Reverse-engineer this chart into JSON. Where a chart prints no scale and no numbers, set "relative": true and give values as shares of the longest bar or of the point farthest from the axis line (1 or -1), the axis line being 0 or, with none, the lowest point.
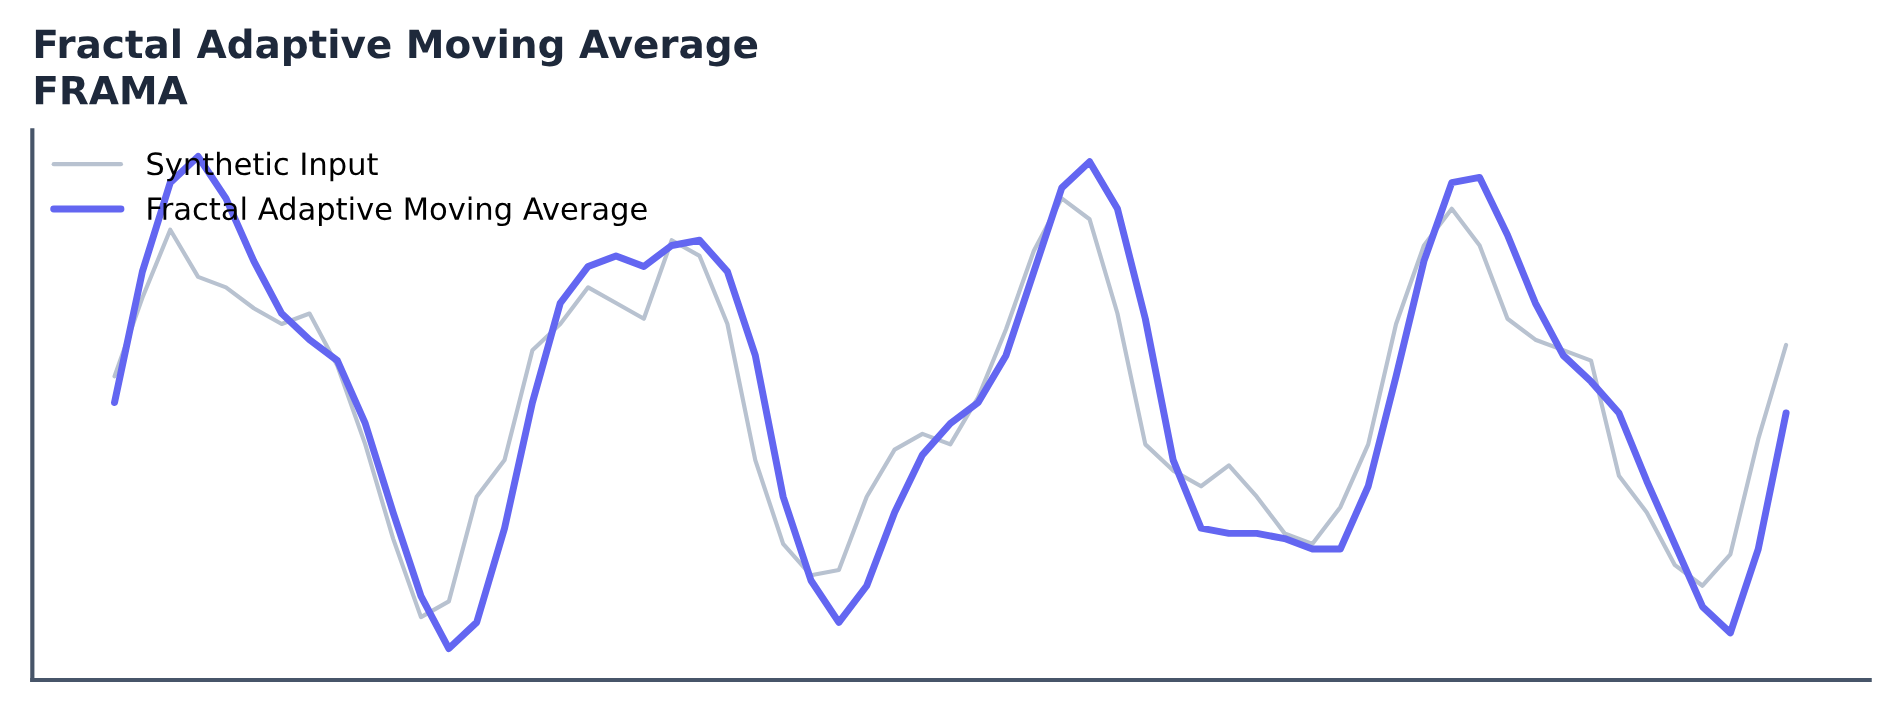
{
  "chart_data": {
    "type": "line",
    "title": "Fractal Adaptive Moving Average",
    "subtitle": "FRAMA",
    "relative": true,
    "legend": "top left",
    "grid": false,
    "categories": [
      null,
      null,
      null,
      null,
      null,
      null,
      null,
      null,
      null,
      null,
      null,
      null,
      null,
      null,
      null,
      null,
      null,
      null,
      null,
      null,
      null,
      null,
      null,
      null,
      null,
      null,
      null,
      null,
      null,
      null,
      null,
      null,
      null,
      null,
      null,
      null,
      null,
      null,
      null,
      null,
      null,
      null,
      null,
      null,
      null,
      null,
      null,
      null,
      null,
      null,
      null,
      null,
      null,
      null,
      null,
      null,
      null,
      null,
      null,
      null,
      null
    ],
    "series": [
      {
        "name": "Synthetic Input",
        "color": "#b8c2d0",
        "values": [
          0.58,
          0.73,
          0.86,
          0.77,
          0.75,
          0.71,
          0.68,
          0.7,
          0.6,
          0.45,
          0.27,
          0.12,
          0.15,
          0.35,
          0.42,
          0.63,
          0.68,
          0.75,
          0.72,
          0.69,
          0.84,
          0.81,
          0.68,
          0.42,
          0.26,
          0.2,
          0.21,
          0.35,
          0.44,
          0.47,
          0.45,
          0.54,
          0.67,
          0.82,
          0.92,
          0.88,
          0.7,
          0.45,
          0.4,
          0.37,
          0.41,
          0.35,
          0.28,
          0.26,
          0.33,
          0.45,
          0.68,
          0.83,
          0.9,
          0.83,
          0.69,
          0.65,
          0.63,
          0.61,
          0.39,
          0.32,
          0.22,
          0.18,
          0.24,
          0.46,
          0.64
        ]
      },
      {
        "name": "Fractal Adaptive Moving Average",
        "color": "#6366f1",
        "values": [
          0.53,
          0.78,
          0.95,
          1.0,
          0.92,
          0.8,
          0.7,
          0.65,
          0.61,
          0.49,
          0.32,
          0.16,
          0.06,
          0.11,
          0.29,
          0.53,
          0.72,
          0.79,
          0.81,
          0.79,
          0.83,
          0.84,
          0.78,
          0.62,
          0.35,
          0.19,
          0.11,
          0.18,
          0.32,
          0.43,
          0.49,
          0.53,
          0.62,
          0.78,
          0.94,
          0.99,
          0.9,
          0.69,
          0.42,
          0.29,
          0.28,
          0.28,
          0.27,
          0.25,
          0.25,
          0.37,
          0.58,
          0.8,
          0.95,
          0.96,
          0.85,
          0.72,
          0.62,
          0.57,
          0.51,
          0.38,
          0.26,
          0.14,
          0.09,
          0.25,
          0.51
        ]
      }
    ]
  }
}
